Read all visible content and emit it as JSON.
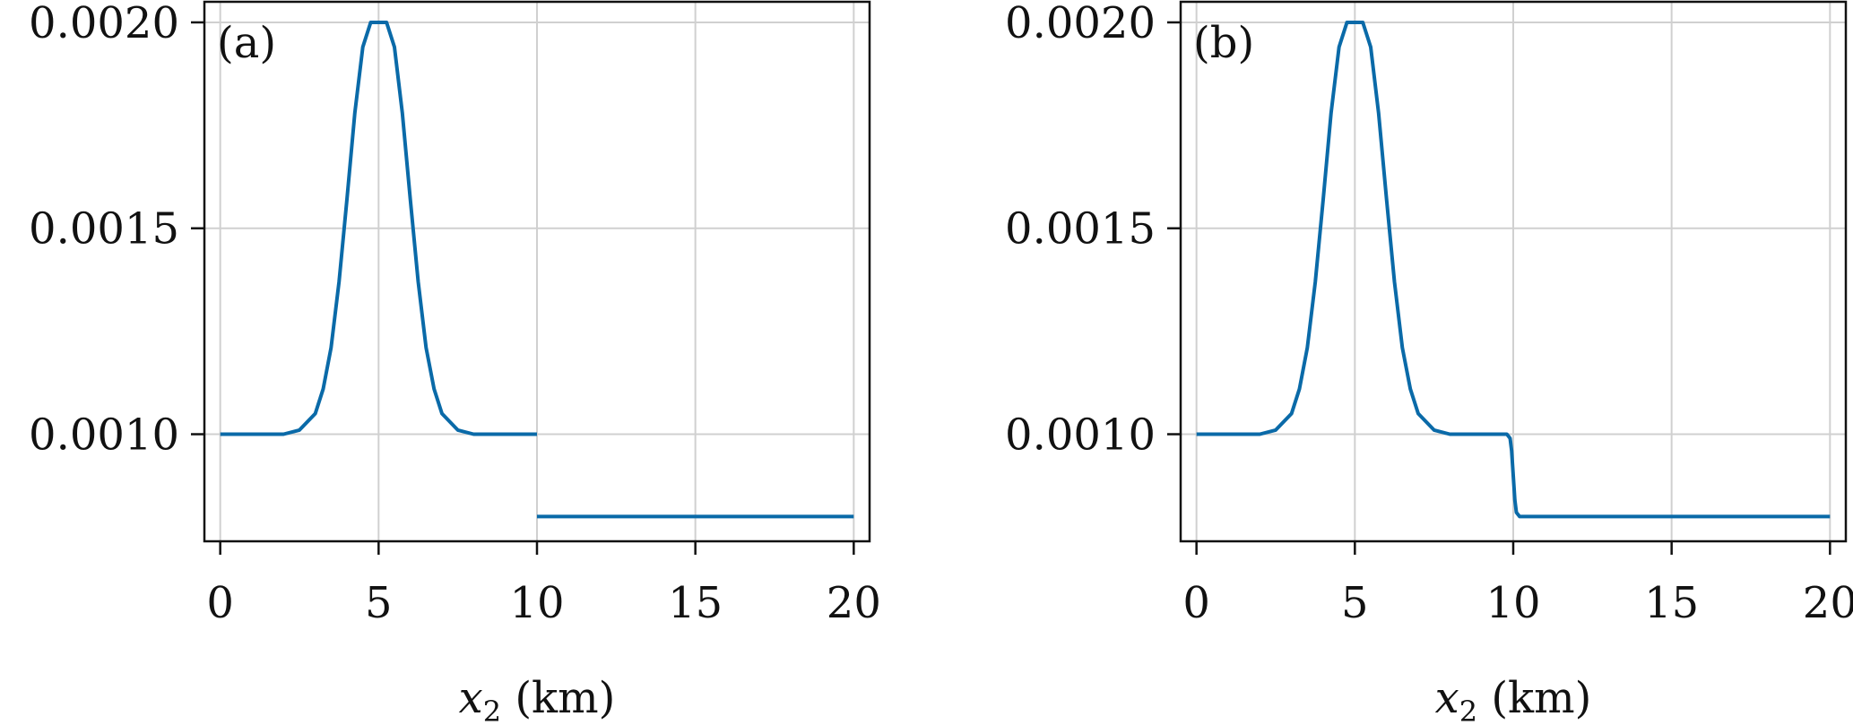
{
  "chart_data": [
    {
      "type": "line",
      "panel_label": "(a)",
      "xlabel": {
        "var": "x",
        "sub": "2",
        "unit": " (km)"
      },
      "ylabel": "",
      "xlim": [
        -0.5,
        20.5
      ],
      "ylim": [
        0.00074,
        0.00205
      ],
      "xticks": [
        0,
        5,
        10,
        15,
        20
      ],
      "xtick_labels": [
        "0",
        "5",
        "10",
        "15",
        "20"
      ],
      "yticks": [
        0.001,
        0.0015,
        0.002
      ],
      "ytick_labels": [
        "0.0010",
        "0.0015",
        "0.0020"
      ],
      "grid": true,
      "line_color": "#0a6aa8",
      "series": [
        {
          "segments": [
            {
              "x": [
                0,
                1,
                2,
                2.5,
                3,
                3.25,
                3.5,
                3.75,
                4,
                4.25,
                4.5,
                4.75,
                5,
                5.25,
                5.5,
                5.75,
                6,
                6.25,
                6.5,
                6.75,
                7,
                7.5,
                8,
                9,
                10
              ],
              "y": [
                0.001,
                0.001,
                0.001,
                0.00101,
                0.00105,
                0.00111,
                0.00121,
                0.00137,
                0.00157,
                0.00178,
                0.00194,
                0.002,
                0.002,
                0.002,
                0.00194,
                0.00178,
                0.00157,
                0.00137,
                0.00121,
                0.00111,
                0.00105,
                0.00101,
                0.001,
                0.001,
                0.001
              ]
            },
            {
              "x": [
                10,
                20
              ],
              "y": [
                0.0008,
                0.0008
              ]
            }
          ]
        }
      ]
    },
    {
      "type": "line",
      "panel_label": "(b)",
      "xlabel": {
        "var": "x",
        "sub": "2",
        "unit": " (km)"
      },
      "ylabel": "",
      "xlim": [
        -0.5,
        20.5
      ],
      "ylim": [
        0.00074,
        0.00205
      ],
      "xticks": [
        0,
        5,
        10,
        15,
        20
      ],
      "xtick_labels": [
        "0",
        "5",
        "10",
        "15",
        "20"
      ],
      "yticks": [
        0.001,
        0.0015,
        0.002
      ],
      "ytick_labels": [
        "0.0010",
        "0.0015",
        "0.0020"
      ],
      "grid": true,
      "line_color": "#0a6aa8",
      "series": [
        {
          "segments": [
            {
              "x": [
                0,
                1,
                2,
                2.5,
                3,
                3.25,
                3.5,
                3.75,
                4,
                4.25,
                4.5,
                4.75,
                5,
                5.25,
                5.5,
                5.75,
                6,
                6.25,
                6.5,
                6.75,
                7,
                7.5,
                8,
                9,
                9.8,
                9.9,
                9.95,
                10,
                10.05,
                10.1,
                10.2,
                11,
                20
              ],
              "y": [
                0.001,
                0.001,
                0.001,
                0.00101,
                0.00105,
                0.00111,
                0.00121,
                0.00137,
                0.00157,
                0.00178,
                0.00194,
                0.002,
                0.002,
                0.002,
                0.00194,
                0.00178,
                0.00157,
                0.00137,
                0.00121,
                0.00111,
                0.00105,
                0.00101,
                0.001,
                0.001,
                0.001,
                0.00099,
                0.00096,
                0.0009,
                0.00084,
                0.00081,
                0.0008,
                0.0008,
                0.0008
              ]
            }
          ]
        }
      ]
    }
  ]
}
